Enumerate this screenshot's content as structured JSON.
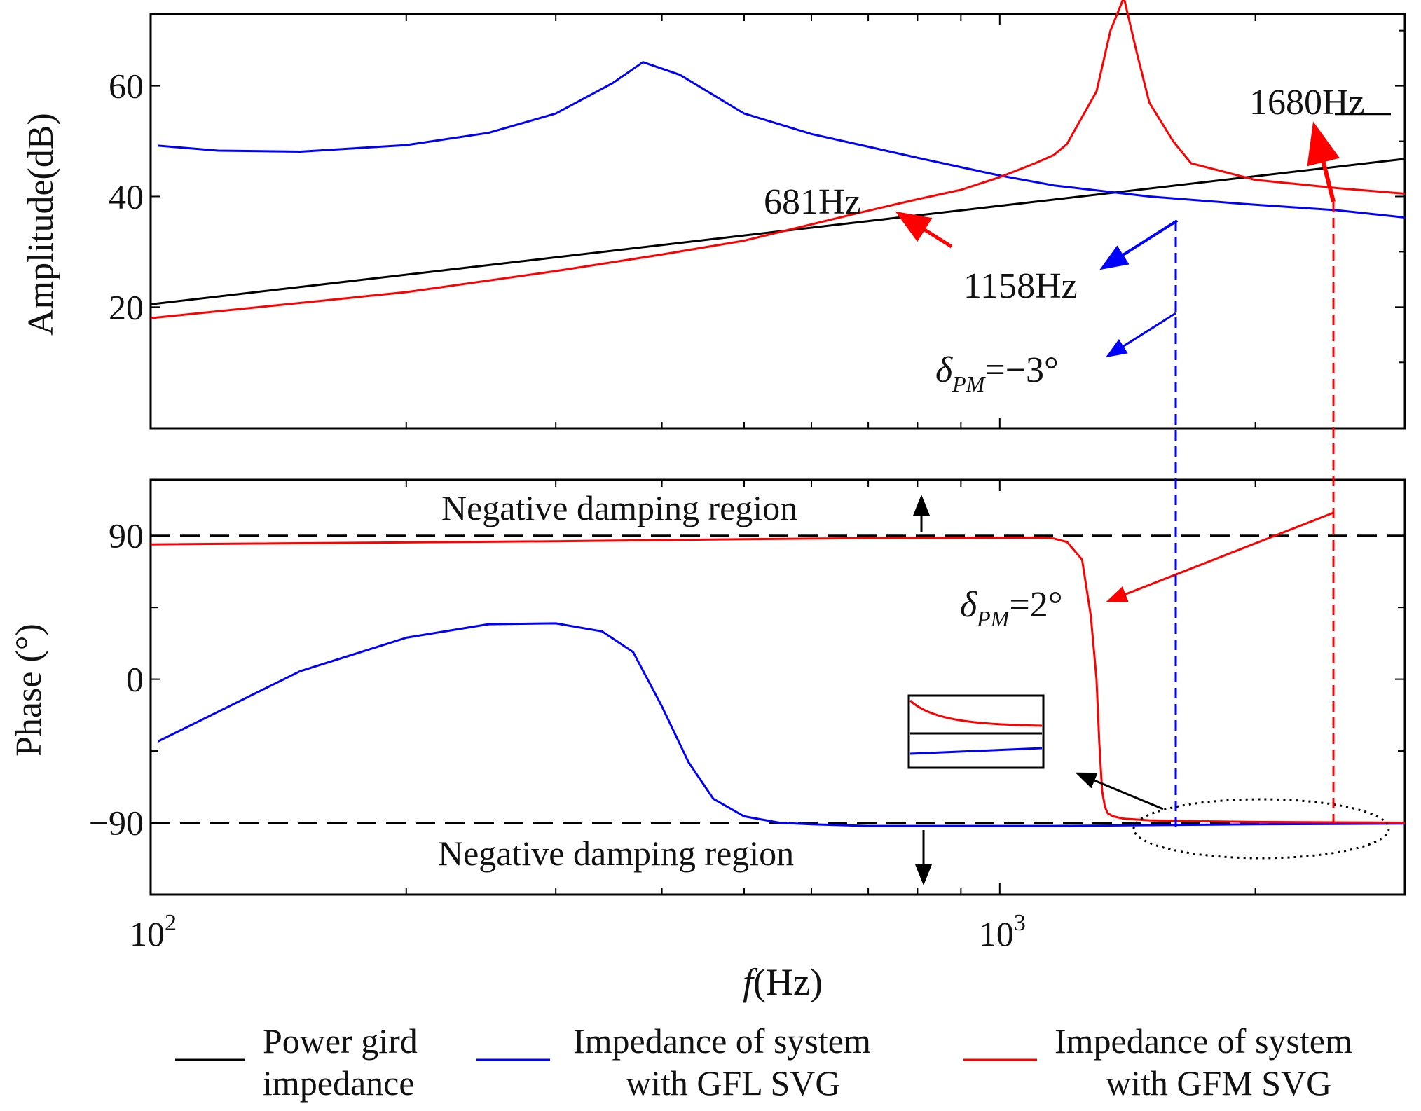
{
  "chart_data": {
    "type": "line",
    "xscale": "log",
    "xlim": [
      100,
      3000
    ],
    "xlabel": {
      "italic": "f",
      "rest": "(Hz)"
    },
    "x_tick_labels": [
      {
        "base": "10",
        "exp": "2",
        "value": 100
      },
      {
        "base": "10",
        "exp": "3",
        "value": 1000
      }
    ],
    "colors": {
      "grid": "#000000",
      "gfl": "#0000ff",
      "gfm": "#ff0000"
    },
    "panels": [
      {
        "id": "amplitude",
        "ylabel": "Amplitude(dB)",
        "ylim": [
          -2,
          73
        ],
        "y_ticks": [
          20,
          40,
          60
        ],
        "y_tick_labels": [
          "20",
          "40",
          "60"
        ],
        "series": [
          {
            "name": "Power gird impedance",
            "color": "#000000",
            "x": [
              100,
              3000
            ],
            "y": [
              20.5,
              46.8
            ]
          },
          {
            "name": "Impedance of system with GFL SVG",
            "color": "#0000ff",
            "x": [
              102,
              120,
              150,
              200,
              250,
              300,
              350,
              380,
              420,
              500,
              600,
              700,
              800,
              900,
              1000,
              1158,
              1500,
              2000,
              2500,
              3000
            ],
            "y": [
              49.2,
              48.3,
              48.1,
              49.3,
              51.5,
              55,
              60.5,
              64.3,
              62,
              55,
              51.3,
              49,
              47,
              45.3,
              43.8,
              42,
              40,
              38.5,
              37.5,
              36.2
            ]
          },
          {
            "name": "Impedance of system with GFM SVG",
            "color": "#ff0000",
            "x": [
              100,
              200,
              300,
              400,
              500,
              681,
              800,
              900,
              1000,
              1100,
              1158,
              1200,
              1300,
              1350,
              1400,
              1450,
              1500,
              1600,
              1680,
              2000,
              2500,
              3000
            ],
            "y": [
              18,
              22.7,
              26.5,
              29.5,
              32,
              37,
              39.5,
              41.2,
              43.5,
              46,
              47.5,
              49.5,
              59,
              70,
              76,
              66,
              57,
              50,
              46,
              43,
              41.5,
              40.5
            ]
          }
        ],
        "annotations": [
          {
            "text": "681Hz",
            "x": 681,
            "y": 37
          },
          {
            "text": "1158Hz",
            "x": 1158,
            "y": 42
          },
          {
            "text": "1680Hz",
            "x": 1680,
            "y": 46
          },
          {
            "symbol": "δ",
            "sub": "PM",
            "value": "=−3°",
            "x": 1158
          }
        ]
      },
      {
        "id": "phase",
        "ylabel": "Phase (°)",
        "ylim": [
          -135,
          125
        ],
        "y_ticks": [
          -90,
          0,
          90
        ],
        "y_tick_labels": [
          "−90",
          "0",
          "90"
        ],
        "reference_lines": [
          90,
          -90
        ],
        "series": [
          {
            "name": "Impedance of system with GFL SVG",
            "color": "#0000ff",
            "x": [
              102,
              150,
              200,
              250,
              300,
              340,
              370,
              400,
              430,
              460,
              500,
              550,
              600,
              700,
              800,
              1000,
              1158,
              1500,
              2000,
              3000
            ],
            "y": [
              -39,
              5,
              26,
              34.5,
              35,
              30,
              17,
              -17,
              -52,
              -75,
              -86,
              -90,
              -91,
              -92,
              -92,
              -92,
              -92,
              -91.5,
              -91,
              -90.5
            ]
          },
          {
            "name": "Impedance of system with GFM SVG",
            "color": "#ff0000",
            "x": [
              100,
              300,
              500,
              700,
              900,
              1100,
              1158,
              1200,
              1250,
              1280,
              1300,
              1310,
              1320,
              1330,
              1340,
              1360,
              1400,
              1500,
              1680,
              2000,
              3000
            ],
            "y": [
              84.5,
              86.5,
              87.8,
              88.4,
              88.6,
              88.8,
              88.2,
              86,
              75,
              40,
              0,
              -40,
              -70,
              -80,
              -84,
              -86,
              -87.5,
              -88.5,
              -89,
              -89.5,
              -90
            ]
          }
        ],
        "annotations": [
          {
            "text": "Negative damping region",
            "position": "above 90"
          },
          {
            "text": "Negative damping region",
            "position": "below −90"
          },
          {
            "symbol": "δ",
            "sub": "PM",
            "value": "=2°",
            "x": 1680
          }
        ]
      }
    ],
    "legend": {
      "placement": "bottom",
      "entries": [
        {
          "label_line1": "Power gird",
          "label_line2": "impedance",
          "color": "#000000"
        },
        {
          "label_line1": "Impedance of  system",
          "label_line2": "with GFL SVG",
          "color": "#0000ff"
        },
        {
          "label_line1": "Impedance of  system",
          "label_line2": "with GFM SVG",
          "color": "#ff0000"
        }
      ]
    }
  }
}
